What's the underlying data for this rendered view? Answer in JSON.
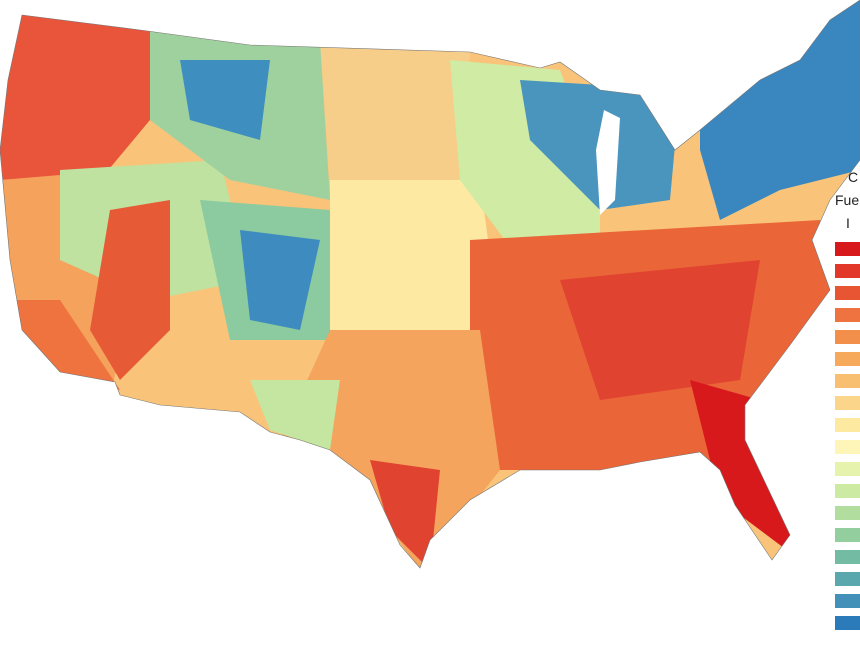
{
  "legend": {
    "title_lines": [
      "C",
      "Fue",
      "I"
    ],
    "colors": [
      "#d7191c",
      "#e2382a",
      "#e85533",
      "#ee7340",
      "#f28f4b",
      "#f6a85b",
      "#f9bf70",
      "#fbd68a",
      "#fde9a0",
      "#fef6b8",
      "#e6f3ad",
      "#cdeaa2",
      "#b1dd9e",
      "#93ce9f",
      "#74bba4",
      "#5aa7ae",
      "#4391b8",
      "#2b7bbb"
    ]
  }
}
